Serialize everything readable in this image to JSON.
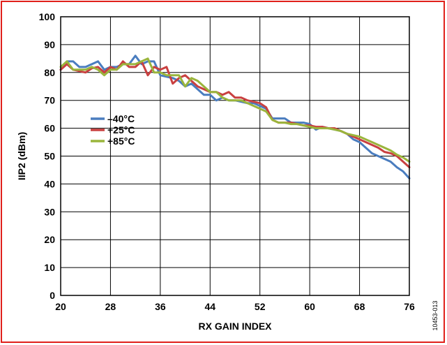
{
  "chart_data": {
    "type": "line",
    "title": "",
    "xlabel": "RX GAIN INDEX",
    "ylabel": "IIP2 (dBm)",
    "xlim": [
      20,
      76
    ],
    "ylim": [
      0,
      100
    ],
    "xticks": [
      20,
      28,
      36,
      44,
      52,
      60,
      68,
      76
    ],
    "yticks": [
      0,
      10,
      20,
      30,
      40,
      50,
      60,
      70,
      80,
      90,
      100
    ],
    "grid": true,
    "legend_position": "center-left",
    "figure_id": "10453-013",
    "series": [
      {
        "name": "–40°C",
        "color": "#4a7dbf",
        "x": [
          20,
          21,
          22,
          23,
          24,
          25,
          26,
          27,
          28,
          29,
          30,
          31,
          32,
          33,
          34,
          35,
          36,
          37,
          38,
          39,
          40,
          41,
          42,
          43,
          44,
          45,
          46,
          47,
          48,
          49,
          50,
          51,
          52,
          53,
          54,
          55,
          56,
          57,
          58,
          59,
          60,
          61,
          62,
          63,
          64,
          65,
          66,
          67,
          68,
          69,
          70,
          71,
          72,
          73,
          74,
          75,
          76
        ],
        "y": [
          81,
          84,
          84,
          82,
          82,
          83,
          84,
          81,
          82,
          82,
          83,
          83,
          86,
          83,
          84,
          84,
          79,
          78.5,
          78,
          77,
          75,
          76,
          74,
          72,
          72,
          70,
          71,
          70,
          70,
          69.5,
          69,
          69,
          68,
          67,
          63.5,
          63.5,
          63.5,
          62,
          62,
          62,
          61.5,
          59.5,
          60.5,
          60,
          59.5,
          59,
          58,
          56,
          55,
          53,
          51,
          50,
          49,
          48,
          46,
          44.5,
          42
        ]
      },
      {
        "name": "+25°C",
        "color": "#c94040",
        "x": [
          20,
          21,
          22,
          23,
          24,
          25,
          26,
          27,
          28,
          29,
          30,
          31,
          32,
          33,
          34,
          35,
          36,
          37,
          38,
          39,
          40,
          41,
          42,
          43,
          44,
          45,
          46,
          47,
          48,
          49,
          50,
          51,
          52,
          53,
          54,
          55,
          56,
          57,
          58,
          59,
          60,
          61,
          62,
          63,
          64,
          65,
          66,
          67,
          68,
          69,
          70,
          71,
          72,
          73,
          74,
          75,
          76
        ],
        "y": [
          81,
          83,
          81,
          80.5,
          80,
          81.5,
          82,
          80,
          82,
          81,
          84,
          82,
          82,
          84,
          79,
          82,
          81,
          82,
          76,
          78,
          79,
          77,
          75,
          74,
          73,
          73,
          72,
          73,
          71,
          71,
          70,
          69.5,
          69,
          67.5,
          63,
          62,
          62,
          62,
          61.5,
          61,
          61,
          60.5,
          60.5,
          60,
          60,
          59,
          58,
          57,
          56,
          55,
          54,
          53,
          51.5,
          51,
          50,
          48,
          46
        ]
      },
      {
        "name": "+85°C",
        "color": "#9ab53c",
        "x": [
          20,
          21,
          22,
          23,
          24,
          25,
          26,
          27,
          28,
          29,
          30,
          31,
          32,
          33,
          34,
          35,
          36,
          37,
          38,
          39,
          40,
          41,
          42,
          43,
          44,
          45,
          46,
          47,
          48,
          49,
          50,
          51,
          52,
          53,
          54,
          55,
          56,
          57,
          58,
          59,
          60,
          61,
          62,
          63,
          64,
          65,
          66,
          67,
          68,
          69,
          70,
          71,
          72,
          73,
          74,
          75,
          76
        ],
        "y": [
          82,
          84,
          81,
          81,
          81,
          82,
          81,
          79,
          81,
          81,
          83,
          83,
          83,
          84,
          85,
          80,
          80,
          79,
          79,
          79,
          75,
          78,
          77,
          75,
          73,
          73,
          71,
          70,
          70,
          70,
          69,
          68,
          67,
          66,
          63,
          62,
          62,
          61.5,
          61.5,
          61,
          60.5,
          60,
          60,
          60,
          59.5,
          59,
          58,
          57.5,
          57,
          56,
          55,
          54,
          53,
          52,
          50.5,
          49.5,
          48
        ]
      }
    ]
  }
}
